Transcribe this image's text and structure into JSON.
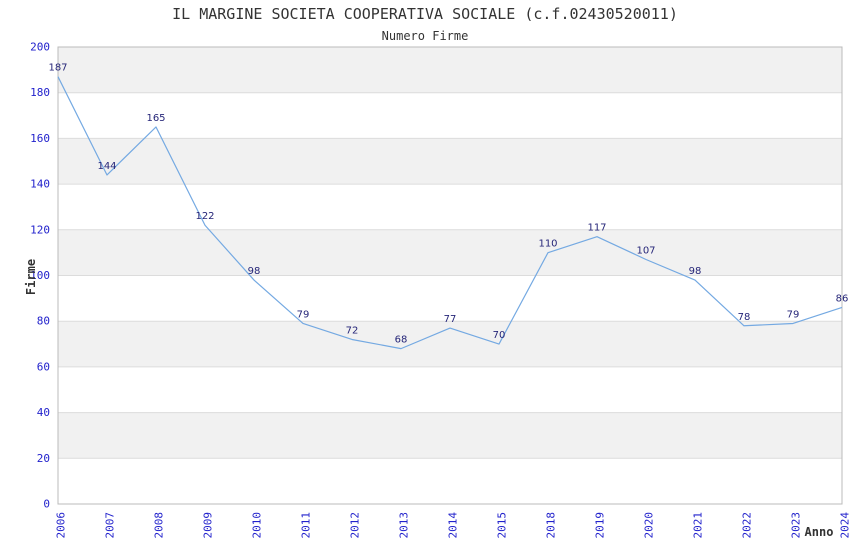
{
  "page": {
    "title": "IL MARGINE SOCIETA COOPERATIVA SOCIALE (c.f.02430520011)",
    "subtitle": "Numero Firme"
  },
  "chart_data": {
    "type": "line",
    "title": "IL MARGINE SOCIETA COOPERATIVA SOCIALE (c.f.02430520011)",
    "subtitle": "Numero Firme",
    "xlabel": "Anno",
    "ylabel": "Firme",
    "categories": [
      "2006",
      "2007",
      "2008",
      "2009",
      "2010",
      "2011",
      "2012",
      "2013",
      "2014",
      "2015",
      "2018",
      "2019",
      "2020",
      "2021",
      "2022",
      "2023",
      "2024"
    ],
    "values": [
      187,
      144,
      165,
      122,
      98,
      79,
      72,
      68,
      77,
      70,
      110,
      117,
      107,
      98,
      78,
      79,
      86
    ],
    "ylim": [
      0,
      200
    ],
    "ytick_step": 20,
    "yticks": [
      0,
      20,
      40,
      60,
      80,
      100,
      120,
      140,
      160,
      180,
      200
    ],
    "grid": "horizontal-bands",
    "legend": "none",
    "colors": {
      "line": "#74a9e2",
      "tick_labels": "#2222cc",
      "point_labels": "#252578",
      "band": "#f1f1f1",
      "gridline": "#dcdcdc",
      "border": "#bbbbbb",
      "title": "#333333"
    }
  }
}
